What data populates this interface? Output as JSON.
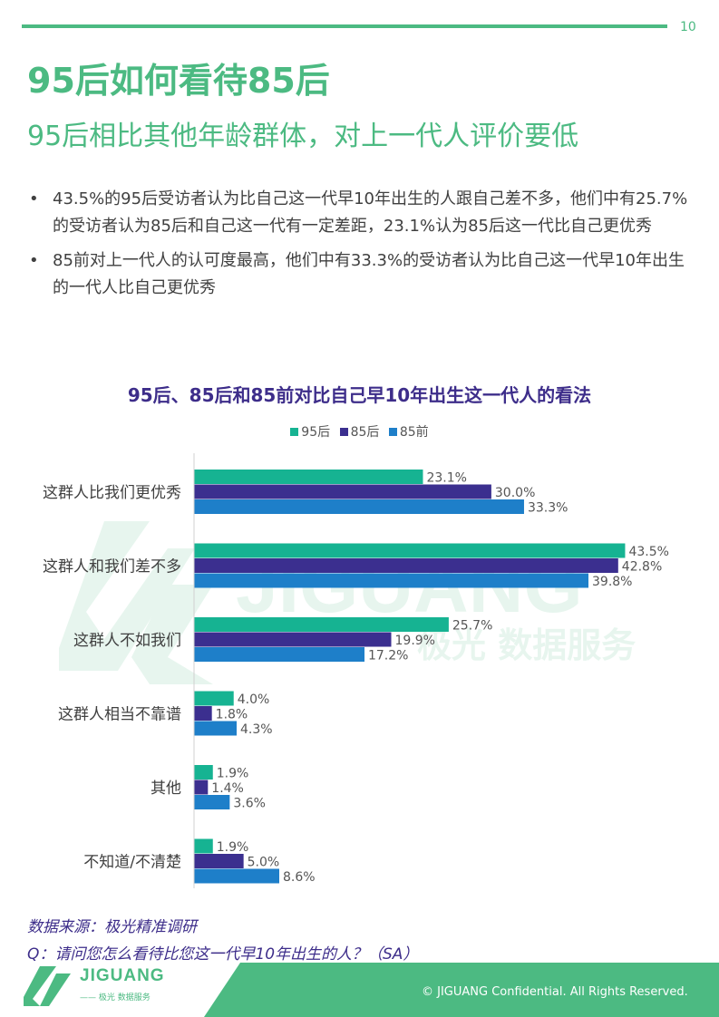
{
  "page_number": "10",
  "title": "95后如何看待85后",
  "subtitle": "95后相比其他年龄群体，对上一代人评价要低",
  "bullets": [
    "43.5%的95后受访者认为比自己这一代早10年出生的人跟自己差不多，他们中有25.7%的受访者认为85后和自己这一代有一定差距，23.1%认为85后这一代比自己更优秀",
    "85前对上一代人的认可度最高，他们中有33.3%的受访者认为比自己这一代早10年出生的一代人比自己更优秀"
  ],
  "bullet_symbol": "•",
  "chart_data": {
    "type": "bar",
    "orientation": "horizontal",
    "title": "95后、85后和85前对比自己早10年出生这一代人的看法",
    "categories": [
      "这群人比我们更优秀",
      "这群人和我们差不多",
      "这群人不如我们",
      "这群人相当不靠谱",
      "其他",
      "不知道/不清楚"
    ],
    "series": [
      {
        "name": "95后",
        "color": "#16b392",
        "values": [
          23.1,
          43.5,
          25.7,
          4.0,
          1.9,
          1.9
        ]
      },
      {
        "name": "85后",
        "color": "#3b2f8f",
        "values": [
          30.0,
          42.8,
          19.9,
          1.8,
          1.4,
          5.0
        ]
      },
      {
        "name": "85前",
        "color": "#1e7fc9",
        "values": [
          33.3,
          39.8,
          17.2,
          4.3,
          3.6,
          8.6
        ]
      }
    ],
    "value_suffix": "%",
    "legend_position": "top",
    "grid": false
  },
  "watermark": {
    "word": "JIGUANG",
    "tagline": "极光 数据服务"
  },
  "source": "数据来源：极光精准调研",
  "question": "Q：请问您怎么看待比您这一代早10年出生的人？（SA）",
  "footer": {
    "logo_word": "JIGUANG",
    "logo_tagline": "—— 极光 数据服务",
    "copyright": "© JIGUANG  Confidential. All Rights Reserved."
  },
  "colors": {
    "brand_green": "#4cba82",
    "heading_purple": "#3d2d8a"
  }
}
